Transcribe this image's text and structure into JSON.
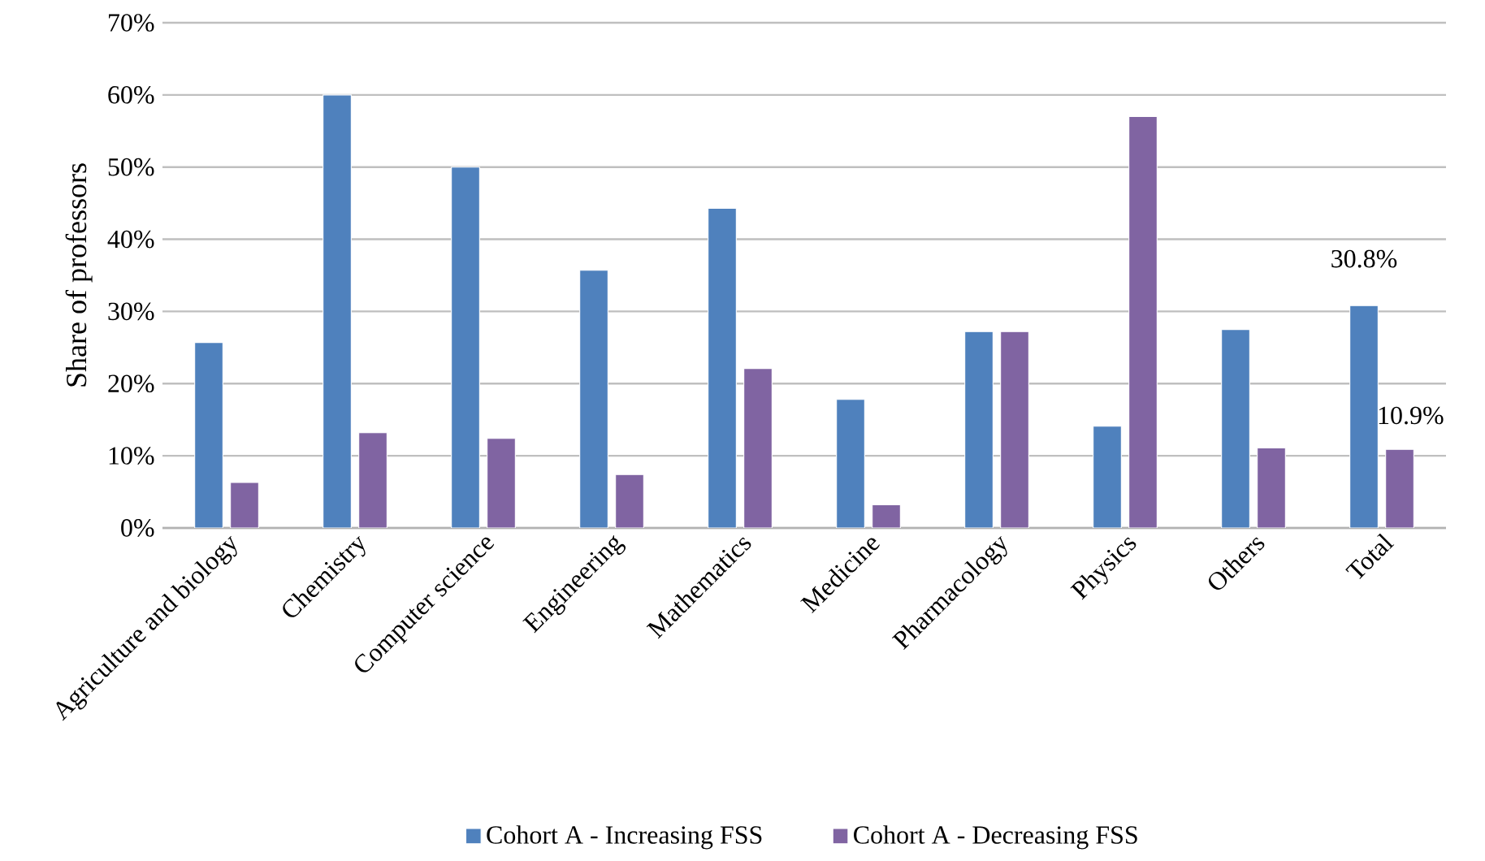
{
  "chart_data": {
    "type": "bar",
    "ylabel": "Share of professors",
    "categories": [
      "Agriculture and biology",
      "Chemistry",
      "Computer science",
      "Engineering",
      "Mathematics",
      "Medicine",
      "Pharmacology",
      "Physics",
      "Others",
      "Total"
    ],
    "series": [
      {
        "name": "Cohort A - Increasing FSS",
        "color": "#4f81bd",
        "values": [
          25.7,
          60,
          50,
          35.7,
          44.3,
          17.8,
          27.2,
          14.1,
          27.5,
          30.8
        ],
        "value_labels": [
          null,
          null,
          null,
          null,
          null,
          null,
          null,
          null,
          null,
          "30.8%"
        ]
      },
      {
        "name": "Cohort A - Decreasing FSS",
        "color": "#8064a2",
        "values": [
          6.3,
          13.2,
          12.4,
          7.4,
          22.1,
          3.2,
          27.2,
          57.0,
          11.1,
          10.9
        ],
        "value_labels": [
          null,
          null,
          null,
          null,
          null,
          null,
          null,
          null,
          null,
          "10.9%"
        ]
      }
    ],
    "ylim": [
      0,
      70
    ],
    "yticks": [
      {
        "value": 0,
        "label": "0%"
      },
      {
        "value": 10,
        "label": "10%"
      },
      {
        "value": 20,
        "label": "20%"
      },
      {
        "value": 30,
        "label": "30%"
      },
      {
        "value": 40,
        "label": "40%"
      },
      {
        "value": 50,
        "label": "50%"
      },
      {
        "value": 60,
        "label": "60%"
      },
      {
        "value": 70,
        "label": "70%"
      }
    ],
    "grid": "y",
    "legend": "bottom"
  }
}
